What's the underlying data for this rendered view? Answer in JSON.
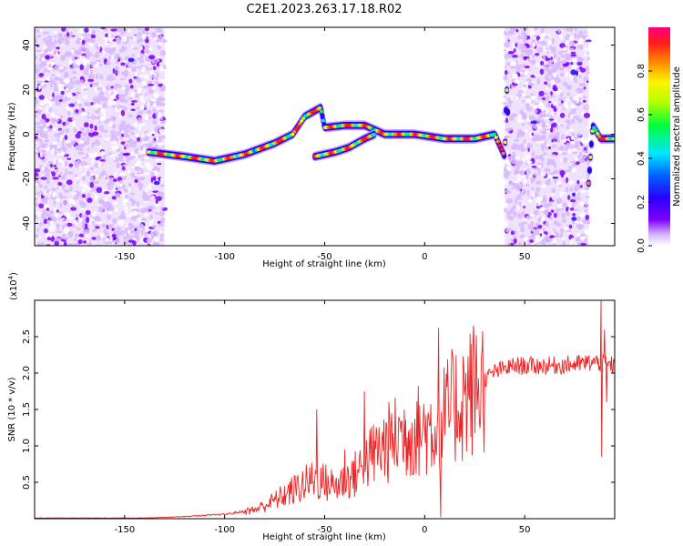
{
  "title": "C2E1.2023.263.17.18.R02",
  "chart_data": [
    {
      "type": "heatmap",
      "description_role": "spectrogram",
      "xlabel": "Height of straight line (km)",
      "ylabel": "Frequency (Hz)",
      "xlim": [
        -195,
        95
      ],
      "ylim": [
        -50,
        48
      ],
      "x_ticks": [
        -150,
        -100,
        -50,
        0,
        50
      ],
      "y_ticks": [
        -40,
        -20,
        0,
        20,
        40
      ],
      "colorbar": {
        "label": "Normalized spectral amplitude",
        "range": [
          0.0,
          1.0
        ],
        "ticks": [
          0.0,
          0.2,
          0.4,
          0.6,
          0.8
        ],
        "tick_labels": [
          "0.0",
          "0.2",
          "0.4",
          "0.6",
          "0.8"
        ],
        "colormap": [
          "#ffffff",
          "#d8b8ff",
          "#7b00ff",
          "#2a00ff",
          "#0060ff",
          "#00e5ff",
          "#00ff3c",
          "#b8ff00",
          "#fff200",
          "#ff8a00",
          "#ff1a1a",
          "#ff0080"
        ]
      },
      "noise_regions": [
        {
          "x_range": [
            -195,
            -130
          ],
          "level": 0.3
        },
        {
          "x_range": [
            40,
            82
          ],
          "level": 0.3
        }
      ],
      "ridge": [
        {
          "x": -138,
          "y": -8
        },
        {
          "x": -120,
          "y": -10
        },
        {
          "x": -105,
          "y": -12
        },
        {
          "x": -90,
          "y": -9
        },
        {
          "x": -75,
          "y": -4
        },
        {
          "x": -66,
          "y": 0
        },
        {
          "x": -60,
          "y": 8
        },
        {
          "x": -52,
          "y": 12
        },
        {
          "x": -50,
          "y": 3
        },
        {
          "x": -40,
          "y": 4
        },
        {
          "x": -30,
          "y": 4
        },
        {
          "x": -20,
          "y": 0
        },
        {
          "x": -5,
          "y": 0
        },
        {
          "x": 10,
          "y": -2
        },
        {
          "x": 25,
          "y": -2
        },
        {
          "x": 35,
          "y": 0
        },
        {
          "x": 40,
          "y": -10
        },
        {
          "x": 41,
          "y": 22
        },
        {
          "x": 42,
          "y": 0
        }
      ],
      "side_ridge": [
        {
          "x": -55,
          "y": -10
        },
        {
          "x": -45,
          "y": -8
        },
        {
          "x": -38,
          "y": -6
        },
        {
          "x": -30,
          "y": -2
        },
        {
          "x": -25,
          "y": 0
        }
      ],
      "right_ridge": [
        {
          "x": 82,
          "y": -22
        },
        {
          "x": 84,
          "y": 4
        },
        {
          "x": 88,
          "y": -2
        },
        {
          "x": 95,
          "y": -2
        }
      ]
    },
    {
      "type": "line",
      "xlabel": "Height of straight line (km)",
      "ylabel": "SNR (10 * v/v)",
      "y_multiplier_label": "(x10",
      "y_multiplier_exponent": "4",
      "y_multiplier_close": ")",
      "xlim": [
        -195,
        95
      ],
      "ylim": [
        0,
        3.0
      ],
      "x_ticks": [
        -150,
        -100,
        -50,
        0,
        50
      ],
      "y_ticks": [
        0.5,
        1.0,
        1.5,
        2.0,
        2.5
      ],
      "y_tick_labels": [
        "0.5",
        "1.0",
        "1.5",
        "2.0",
        "2.5"
      ],
      "series_color": "#ee2222",
      "envelope": [
        {
          "x": -195,
          "y": 0.01
        },
        {
          "x": -140,
          "y": 0.01
        },
        {
          "x": -120,
          "y": 0.03
        },
        {
          "x": -100,
          "y": 0.06
        },
        {
          "x": -85,
          "y": 0.12
        },
        {
          "x": -75,
          "y": 0.25
        },
        {
          "x": -65,
          "y": 0.4
        },
        {
          "x": -55,
          "y": 0.55
        },
        {
          "x": -45,
          "y": 0.45
        },
        {
          "x": -35,
          "y": 0.6
        },
        {
          "x": -25,
          "y": 0.9
        },
        {
          "x": -15,
          "y": 1.1
        },
        {
          "x": -5,
          "y": 1.2
        },
        {
          "x": 5,
          "y": 1.25
        },
        {
          "x": 15,
          "y": 1.55
        },
        {
          "x": 25,
          "y": 1.8
        },
        {
          "x": 35,
          "y": 2.02
        },
        {
          "x": 45,
          "y": 2.1
        },
        {
          "x": 60,
          "y": 2.1
        },
        {
          "x": 75,
          "y": 2.12
        },
        {
          "x": 85,
          "y": 2.15
        },
        {
          "x": 95,
          "y": 2.1
        }
      ],
      "spikes": [
        {
          "x": -54,
          "y": 1.5
        },
        {
          "x": -40,
          "y": 0.95
        },
        {
          "x": -30,
          "y": 1.75
        },
        {
          "x": -13,
          "y": 1.4
        },
        {
          "x": 7,
          "y": 2.62
        },
        {
          "x": 8,
          "y": 0.02
        },
        {
          "x": 88,
          "y": 3.0
        },
        {
          "x": 88.5,
          "y": 0.85
        },
        {
          "x": 90,
          "y": 2.6
        },
        {
          "x": 91,
          "y": 1.6
        }
      ]
    }
  ]
}
